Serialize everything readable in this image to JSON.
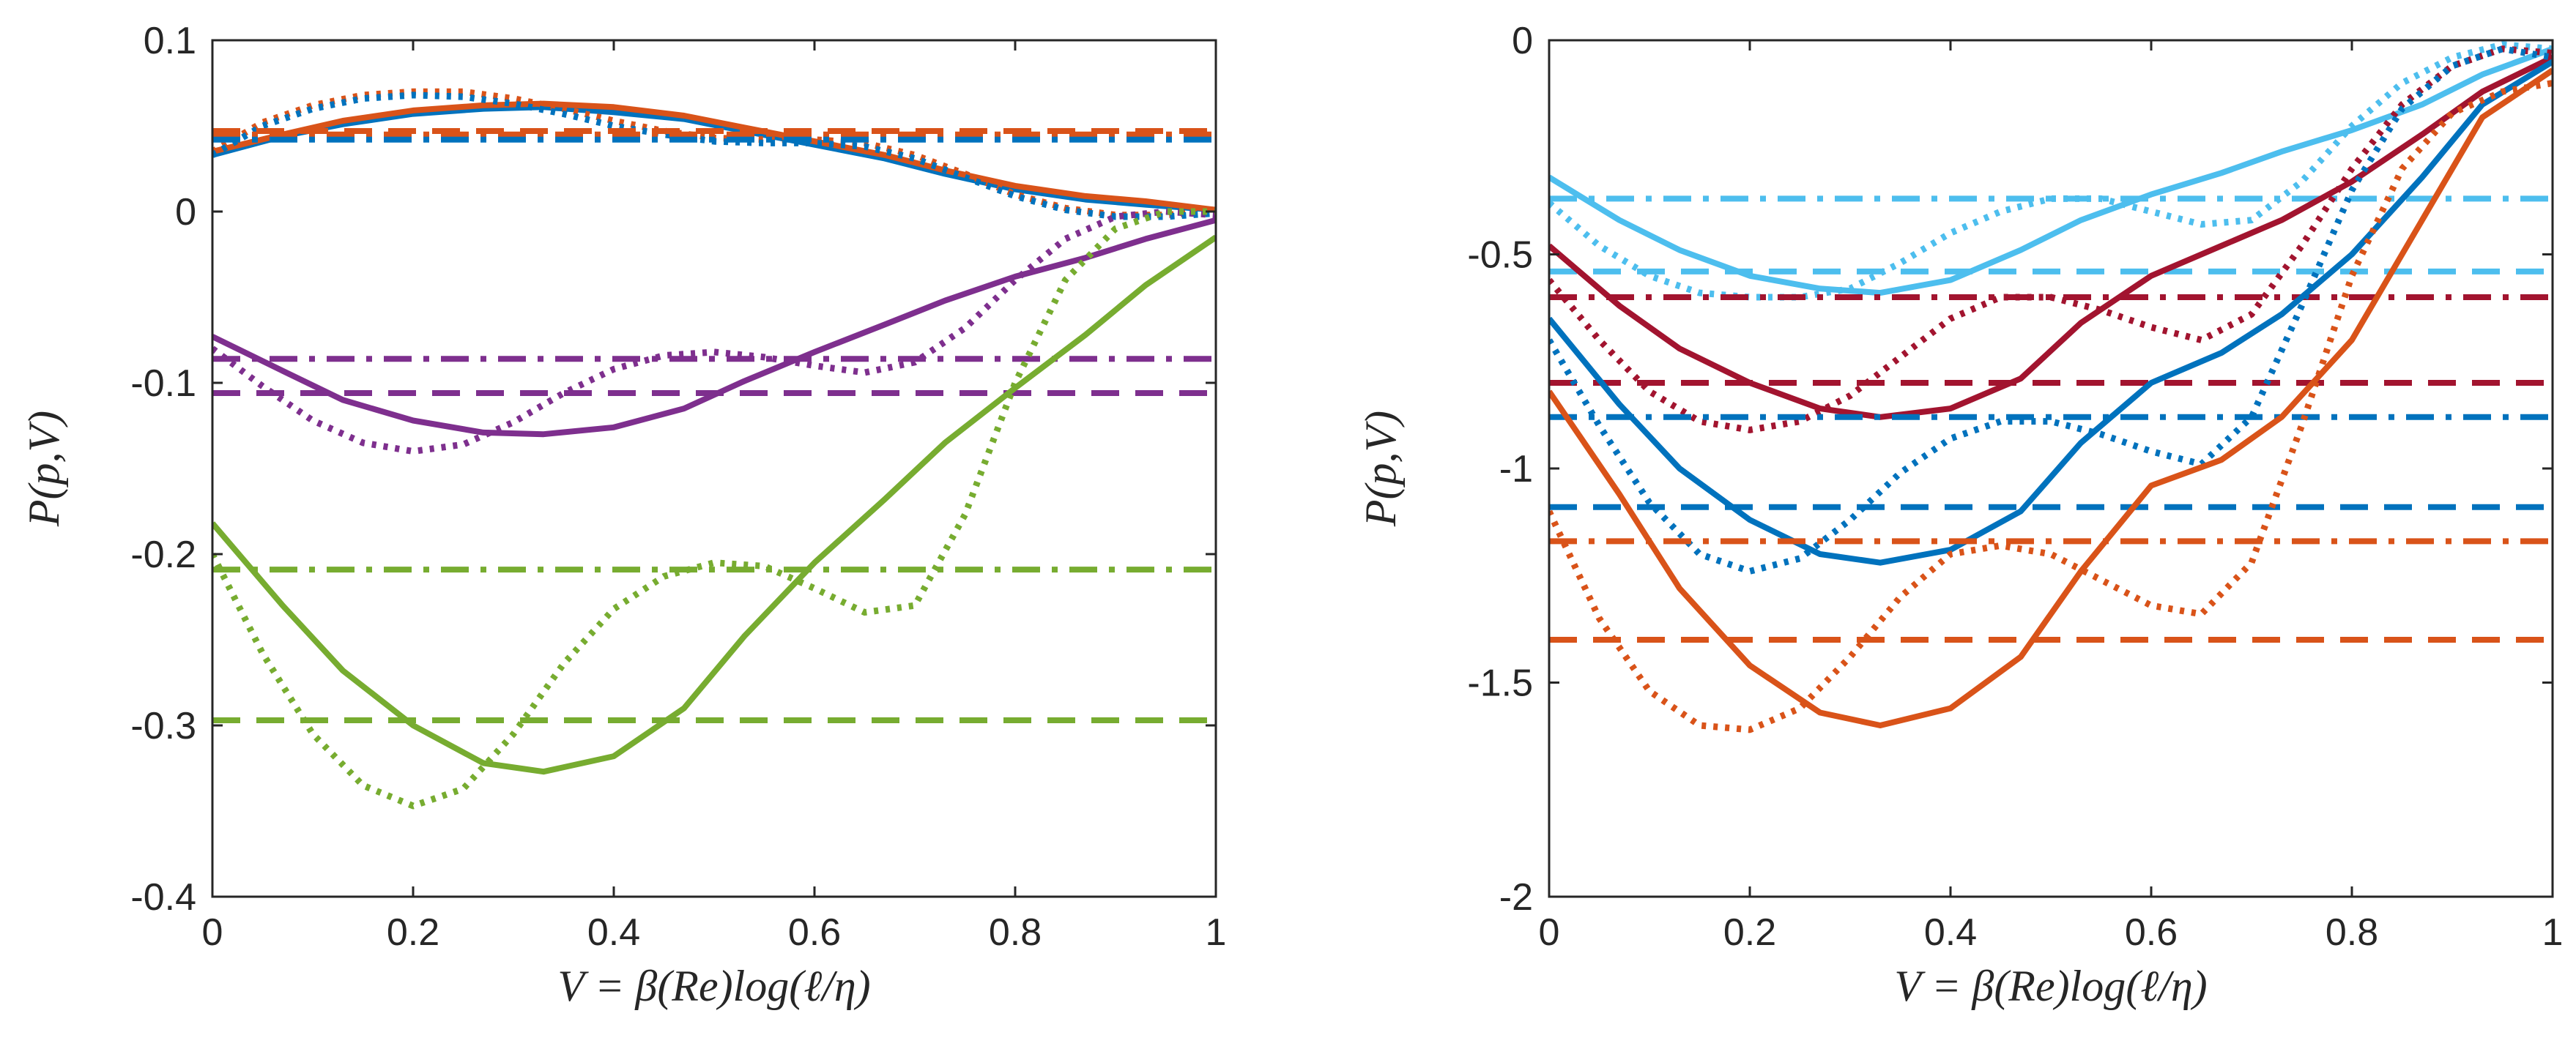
{
  "chart_data": [
    {
      "type": "line",
      "panel": "left",
      "xlabel": "V = β(Re)log(ℓ/η)",
      "ylabel": "P(p,V)",
      "xlim": [
        0,
        1
      ],
      "ylim": [
        -0.4,
        0.1
      ],
      "x_ticks": [
        0,
        0.2,
        0.4,
        0.6,
        0.8,
        1
      ],
      "x_tick_labels": [
        "0",
        "0.2",
        "0.4",
        "0.6",
        "0.8",
        "1"
      ],
      "y_ticks": [
        0.1,
        0,
        -0.1,
        -0.2,
        -0.3,
        -0.4
      ],
      "y_tick_labels": [
        "0.1",
        "0",
        "-0.1",
        "-0.2",
        "-0.3",
        "-0.4"
      ],
      "grid": false,
      "series": [
        {
          "name": "blue solid",
          "color": "#0072BD",
          "style": "solid",
          "x": [
            0,
            0.07,
            0.13,
            0.2,
            0.27,
            0.33,
            0.4,
            0.47,
            0.53,
            0.6,
            0.67,
            0.73,
            0.8,
            0.87,
            0.93,
            1
          ],
          "y": [
            0.033,
            0.044,
            0.051,
            0.057,
            0.06,
            0.061,
            0.058,
            0.054,
            0.047,
            0.039,
            0.031,
            0.022,
            0.013,
            0.007,
            0.004,
            0.001
          ]
        },
        {
          "name": "orange solid",
          "color": "#D95319",
          "style": "solid",
          "x": [
            0,
            0.07,
            0.13,
            0.2,
            0.27,
            0.33,
            0.4,
            0.47,
            0.53,
            0.6,
            0.67,
            0.73,
            0.8,
            0.87,
            0.93,
            1
          ],
          "y": [
            0.035,
            0.045,
            0.053,
            0.059,
            0.062,
            0.063,
            0.061,
            0.056,
            0.049,
            0.041,
            0.033,
            0.024,
            0.015,
            0.009,
            0.006,
            0.001
          ]
        },
        {
          "name": "orange dotted",
          "color": "#D95319",
          "style": "dotted",
          "x": [
            0,
            0.05,
            0.1,
            0.15,
            0.2,
            0.25,
            0.3,
            0.35,
            0.4,
            0.45,
            0.5,
            0.55,
            0.6,
            0.65,
            0.7,
            0.75,
            0.8,
            0.85,
            0.9,
            0.95,
            1
          ],
          "y": [
            0.035,
            0.052,
            0.062,
            0.068,
            0.07,
            0.07,
            0.066,
            0.06,
            0.053,
            0.047,
            0.043,
            0.042,
            0.042,
            0.04,
            0.033,
            0.022,
            0.01,
            0.002,
            -0.002,
            -0.002,
            0.0
          ]
        },
        {
          "name": "blue dotted",
          "color": "#0072BD",
          "style": "dotted",
          "x": [
            0,
            0.05,
            0.1,
            0.15,
            0.2,
            0.25,
            0.3,
            0.35,
            0.4,
            0.45,
            0.5,
            0.55,
            0.6,
            0.65,
            0.7,
            0.75,
            0.8,
            0.85,
            0.9,
            0.95,
            1
          ],
          "y": [
            0.033,
            0.05,
            0.06,
            0.066,
            0.068,
            0.067,
            0.063,
            0.057,
            0.05,
            0.045,
            0.041,
            0.04,
            0.04,
            0.038,
            0.031,
            0.02,
            0.009,
            0.001,
            -0.003,
            -0.003,
            -0.001
          ]
        },
        {
          "name": "orange dashed",
          "color": "#D95319",
          "style": "dashed",
          "x": [
            0,
            1
          ],
          "y": [
            0.047,
            0.047
          ]
        },
        {
          "name": "orange dash-dot",
          "color": "#D95319",
          "style": "dashdot",
          "x": [
            0,
            1
          ],
          "y": [
            0.045,
            0.045
          ]
        },
        {
          "name": "blue dash-dot",
          "color": "#0072BD",
          "style": "dashdot",
          "x": [
            0,
            1
          ],
          "y": [
            0.042,
            0.042
          ]
        },
        {
          "name": "purple solid",
          "color": "#7E2F8E",
          "style": "solid",
          "x": [
            0,
            0.07,
            0.13,
            0.2,
            0.27,
            0.33,
            0.4,
            0.47,
            0.53,
            0.6,
            0.67,
            0.73,
            0.8,
            0.87,
            0.93,
            1
          ],
          "y": [
            -0.073,
            -0.093,
            -0.11,
            -0.122,
            -0.129,
            -0.13,
            -0.126,
            -0.115,
            -0.099,
            -0.082,
            -0.066,
            -0.052,
            -0.038,
            -0.027,
            -0.016,
            -0.005
          ]
        },
        {
          "name": "purple dotted",
          "color": "#7E2F8E",
          "style": "dotted",
          "x": [
            0,
            0.05,
            0.1,
            0.15,
            0.2,
            0.25,
            0.3,
            0.35,
            0.4,
            0.45,
            0.5,
            0.55,
            0.6,
            0.65,
            0.7,
            0.75,
            0.8,
            0.85,
            0.9,
            0.95,
            1
          ],
          "y": [
            -0.08,
            -0.102,
            -0.122,
            -0.135,
            -0.14,
            -0.136,
            -0.123,
            -0.106,
            -0.092,
            -0.084,
            -0.082,
            -0.085,
            -0.09,
            -0.094,
            -0.088,
            -0.068,
            -0.04,
            -0.016,
            -0.003,
            0.0,
            -0.002
          ]
        },
        {
          "name": "purple dash-dot",
          "color": "#7E2F8E",
          "style": "dashdot",
          "x": [
            0,
            1
          ],
          "y": [
            -0.086,
            -0.086
          ]
        },
        {
          "name": "purple dashed",
          "color": "#7E2F8E",
          "style": "dashed",
          "x": [
            0,
            1
          ],
          "y": [
            -0.106,
            -0.106
          ]
        },
        {
          "name": "green solid",
          "color": "#77AC30",
          "style": "solid",
          "x": [
            0,
            0.07,
            0.13,
            0.2,
            0.27,
            0.33,
            0.4,
            0.47,
            0.53,
            0.6,
            0.67,
            0.73,
            0.8,
            0.87,
            0.93,
            1
          ],
          "y": [
            -0.182,
            -0.23,
            -0.268,
            -0.3,
            -0.322,
            -0.327,
            -0.318,
            -0.29,
            -0.248,
            -0.205,
            -0.168,
            -0.135,
            -0.103,
            -0.072,
            -0.043,
            -0.015
          ]
        },
        {
          "name": "green dotted",
          "color": "#77AC30",
          "style": "dotted",
          "x": [
            0,
            0.05,
            0.1,
            0.15,
            0.2,
            0.25,
            0.3,
            0.35,
            0.4,
            0.45,
            0.5,
            0.55,
            0.6,
            0.65,
            0.7,
            0.75,
            0.8,
            0.85,
            0.9,
            0.95,
            1
          ],
          "y": [
            -0.2,
            -0.258,
            -0.305,
            -0.335,
            -0.347,
            -0.337,
            -0.305,
            -0.264,
            -0.232,
            -0.213,
            -0.205,
            -0.207,
            -0.22,
            -0.234,
            -0.23,
            -0.177,
            -0.1,
            -0.04,
            -0.01,
            0.0,
            0.0
          ]
        },
        {
          "name": "green dash-dot",
          "color": "#77AC30",
          "style": "dashdot",
          "x": [
            0,
            1
          ],
          "y": [
            -0.209,
            -0.209
          ]
        },
        {
          "name": "green dashed",
          "color": "#77AC30",
          "style": "dashed",
          "x": [
            0,
            1
          ],
          "y": [
            -0.297,
            -0.297
          ]
        }
      ]
    },
    {
      "type": "line",
      "panel": "right",
      "xlabel": "V = β(Re)log(ℓ/η)",
      "ylabel": "P(p,V)",
      "xlim": [
        0,
        1
      ],
      "ylim": [
        -2,
        0
      ],
      "x_ticks": [
        0,
        0.2,
        0.4,
        0.6,
        0.8,
        1
      ],
      "x_tick_labels": [
        "0",
        "0.2",
        "0.4",
        "0.6",
        "0.8",
        "1"
      ],
      "y_ticks": [
        0,
        -0.5,
        -1,
        -1.5,
        -2
      ],
      "y_tick_labels": [
        "0",
        "-0.5",
        "-1",
        "-1.5",
        "-2"
      ],
      "grid": false,
      "series": [
        {
          "name": "light blue solid",
          "color": "#4DBEEE",
          "style": "solid",
          "x": [
            0,
            0.07,
            0.13,
            0.2,
            0.27,
            0.33,
            0.4,
            0.47,
            0.53,
            0.6,
            0.67,
            0.73,
            0.8,
            0.87,
            0.93,
            1
          ],
          "y": [
            -0.32,
            -0.42,
            -0.49,
            -0.55,
            -0.58,
            -0.59,
            -0.56,
            -0.49,
            -0.42,
            -0.36,
            -0.31,
            -0.26,
            -0.21,
            -0.15,
            -0.08,
            -0.02
          ]
        },
        {
          "name": "light blue dotted",
          "color": "#4DBEEE",
          "style": "dotted",
          "x": [
            0,
            0.05,
            0.1,
            0.15,
            0.2,
            0.25,
            0.3,
            0.35,
            0.4,
            0.45,
            0.5,
            0.55,
            0.6,
            0.65,
            0.7,
            0.75,
            0.8,
            0.85,
            0.9,
            0.95,
            1
          ],
          "y": [
            -0.38,
            -0.48,
            -0.55,
            -0.59,
            -0.6,
            -0.6,
            -0.58,
            -0.52,
            -0.45,
            -0.4,
            -0.37,
            -0.37,
            -0.4,
            -0.43,
            -0.42,
            -0.33,
            -0.2,
            -0.1,
            -0.04,
            -0.01,
            -0.02
          ]
        },
        {
          "name": "light blue dash-dot",
          "color": "#4DBEEE",
          "style": "dashdot",
          "x": [
            0,
            1
          ],
          "y": [
            -0.37,
            -0.37
          ]
        },
        {
          "name": "light blue dashed",
          "color": "#4DBEEE",
          "style": "dashed",
          "x": [
            0,
            1
          ],
          "y": [
            -0.54,
            -0.54
          ]
        },
        {
          "name": "dark red solid",
          "color": "#A2142F",
          "style": "solid",
          "x": [
            0,
            0.07,
            0.13,
            0.2,
            0.27,
            0.33,
            0.4,
            0.47,
            0.53,
            0.6,
            0.67,
            0.73,
            0.8,
            0.87,
            0.93,
            1
          ],
          "y": [
            -0.48,
            -0.62,
            -0.72,
            -0.8,
            -0.86,
            -0.88,
            -0.86,
            -0.79,
            -0.66,
            -0.55,
            -0.48,
            -0.42,
            -0.33,
            -0.22,
            -0.12,
            -0.04
          ]
        },
        {
          "name": "dark red dotted",
          "color": "#A2142F",
          "style": "dotted",
          "x": [
            0,
            0.05,
            0.1,
            0.15,
            0.2,
            0.25,
            0.3,
            0.35,
            0.4,
            0.45,
            0.5,
            0.55,
            0.6,
            0.65,
            0.7,
            0.75,
            0.8,
            0.85,
            0.9,
            0.95,
            1
          ],
          "y": [
            -0.56,
            -0.7,
            -0.82,
            -0.89,
            -0.91,
            -0.89,
            -0.83,
            -0.74,
            -0.65,
            -0.6,
            -0.6,
            -0.63,
            -0.67,
            -0.7,
            -0.64,
            -0.48,
            -0.3,
            -0.15,
            -0.06,
            -0.02,
            -0.03
          ]
        },
        {
          "name": "dark red dash-dot",
          "color": "#A2142F",
          "style": "dashdot",
          "x": [
            0,
            1
          ],
          "y": [
            -0.6,
            -0.6
          ]
        },
        {
          "name": "dark red dashed",
          "color": "#A2142F",
          "style": "dashed",
          "x": [
            0,
            1
          ],
          "y": [
            -0.8,
            -0.8
          ]
        },
        {
          "name": "blue solid",
          "color": "#0072BD",
          "style": "solid",
          "x": [
            0,
            0.07,
            0.13,
            0.2,
            0.27,
            0.33,
            0.4,
            0.47,
            0.53,
            0.6,
            0.67,
            0.73,
            0.8,
            0.87,
            0.93,
            1
          ],
          "y": [
            -0.65,
            -0.85,
            -1.0,
            -1.12,
            -1.2,
            -1.22,
            -1.19,
            -1.1,
            -0.94,
            -0.8,
            -0.73,
            -0.64,
            -0.5,
            -0.32,
            -0.15,
            -0.05
          ]
        },
        {
          "name": "blue dotted",
          "color": "#0072BD",
          "style": "dotted",
          "x": [
            0,
            0.05,
            0.1,
            0.15,
            0.2,
            0.25,
            0.3,
            0.35,
            0.4,
            0.45,
            0.5,
            0.55,
            0.6,
            0.65,
            0.7,
            0.75,
            0.8,
            0.85,
            0.9,
            0.95,
            1
          ],
          "y": [
            -0.7,
            -0.9,
            -1.08,
            -1.2,
            -1.24,
            -1.21,
            -1.12,
            -1.01,
            -0.93,
            -0.89,
            -0.89,
            -0.92,
            -0.96,
            -0.99,
            -0.88,
            -0.62,
            -0.35,
            -0.16,
            -0.06,
            -0.02,
            -0.04
          ]
        },
        {
          "name": "blue dash-dot",
          "color": "#0072BD",
          "style": "dashdot",
          "x": [
            0,
            1
          ],
          "y": [
            -0.88,
            -0.88
          ]
        },
        {
          "name": "blue dashed",
          "color": "#0072BD",
          "style": "dashed",
          "x": [
            0,
            1
          ],
          "y": [
            -1.09,
            -1.09
          ]
        },
        {
          "name": "orange solid",
          "color": "#D95319",
          "style": "solid",
          "x": [
            0,
            0.07,
            0.13,
            0.2,
            0.27,
            0.33,
            0.4,
            0.47,
            0.53,
            0.6,
            0.67,
            0.73,
            0.8,
            0.87,
            0.93,
            1
          ],
          "y": [
            -0.82,
            -1.06,
            -1.28,
            -1.46,
            -1.57,
            -1.6,
            -1.56,
            -1.44,
            -1.24,
            -1.04,
            -0.98,
            -0.88,
            -0.7,
            -0.42,
            -0.18,
            -0.07
          ]
        },
        {
          "name": "orange dotted",
          "color": "#D95319",
          "style": "dotted",
          "x": [
            0,
            0.05,
            0.1,
            0.15,
            0.2,
            0.25,
            0.3,
            0.35,
            0.4,
            0.45,
            0.5,
            0.55,
            0.6,
            0.65,
            0.7,
            0.75,
            0.8,
            0.85,
            0.9,
            0.95,
            1
          ],
          "y": [
            -1.1,
            -1.35,
            -1.52,
            -1.6,
            -1.61,
            -1.56,
            -1.44,
            -1.3,
            -1.2,
            -1.18,
            -1.2,
            -1.26,
            -1.32,
            -1.34,
            -1.22,
            -0.9,
            -0.55,
            -0.3,
            -0.17,
            -0.12,
            -0.1
          ]
        },
        {
          "name": "orange dash-dot",
          "color": "#D95319",
          "style": "dashdot",
          "x": [
            0,
            1
          ],
          "y": [
            -1.17,
            -1.17
          ]
        },
        {
          "name": "orange dashed",
          "color": "#D95319",
          "style": "dashed",
          "x": [
            0,
            1
          ],
          "y": [
            -1.4,
            -1.4
          ]
        }
      ]
    }
  ]
}
